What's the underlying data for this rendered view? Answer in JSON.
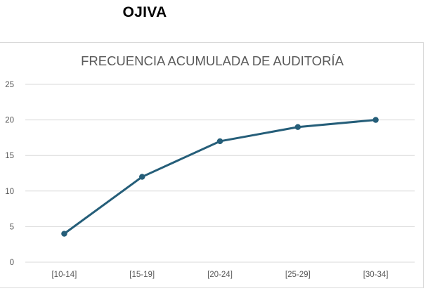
{
  "heading": "OJIVA",
  "chart_data": {
    "type": "line",
    "title": "FRECUENCIA ACUMULADA DE AUDITORÍA",
    "xlabel": "",
    "ylabel": "",
    "categories": [
      "[10-14]",
      "[15-19]",
      "[20-24]",
      "[25-29]",
      "[30-34]"
    ],
    "series": [
      {
        "values": [
          4,
          12,
          17,
          19,
          20
        ]
      }
    ],
    "ylim": [
      0,
      25
    ],
    "yticks": [
      0,
      5,
      10,
      15,
      20,
      25
    ],
    "grid": true,
    "legend": "none",
    "line_color": "#255e79",
    "grid_color": "#d9d9d9"
  }
}
